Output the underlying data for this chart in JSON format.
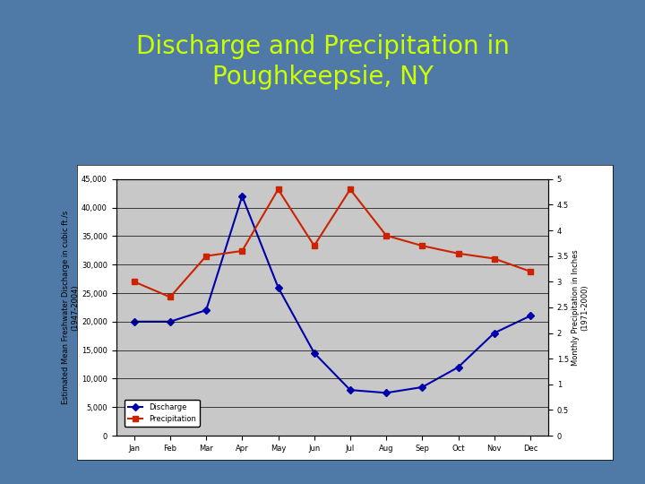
{
  "title": "Discharge and Precipitation in\nPoughkeepsie, NY",
  "title_color": "#CCFF00",
  "bg_color": "#4F7AA8",
  "plot_bg_color": "#C8C8C8",
  "chart_bg": "#FFFFFF",
  "months": [
    "Jan",
    "Feb",
    "Mar",
    "Apr",
    "May",
    "Jun",
    "Jul",
    "Aug",
    "Sep",
    "Oct",
    "Nov",
    "Dec"
  ],
  "discharge": [
    20000,
    20000,
    22000,
    42000,
    26000,
    14500,
    8000,
    7500,
    8500,
    12000,
    18000,
    21000
  ],
  "precipitation": [
    3.0,
    2.7,
    3.5,
    3.6,
    4.8,
    3.7,
    4.8,
    3.9,
    3.7,
    3.55,
    3.45,
    3.2
  ],
  "discharge_color": "#0000AA",
  "precip_color": "#CC2200",
  "ylabel_left": "Estimated Mean Freshwater Discharge in cubic ft./s\n(1947-2004)",
  "ylabel_right": "Monthly Precipitation in Inches\n(1971-2000)",
  "ylim_left": [
    0,
    45000
  ],
  "ylim_right": [
    0,
    5
  ],
  "yticks_left": [
    0,
    5000,
    10000,
    15000,
    20000,
    25000,
    30000,
    35000,
    40000,
    45000
  ],
  "ytick_labels_left": [
    "0",
    "5,000",
    "10,000",
    "15,000",
    "20,000",
    "25,000",
    "30,000",
    "35,000",
    "40,000",
    "45,000"
  ],
  "yticks_right": [
    0,
    0.5,
    1.0,
    1.5,
    2.0,
    2.5,
    3.0,
    3.5,
    4.0,
    4.5,
    5.0
  ],
  "ytick_labels_right": [
    "0",
    "0.5",
    "1",
    "1.5",
    "2",
    "2.5",
    "3",
    "3.5",
    "4",
    "4.5",
    "5"
  ],
  "legend_discharge": "Discharge",
  "legend_precip": "Precipitation",
  "title_fontsize": 20,
  "tick_fontsize": 6,
  "ylabel_fontsize": 6
}
